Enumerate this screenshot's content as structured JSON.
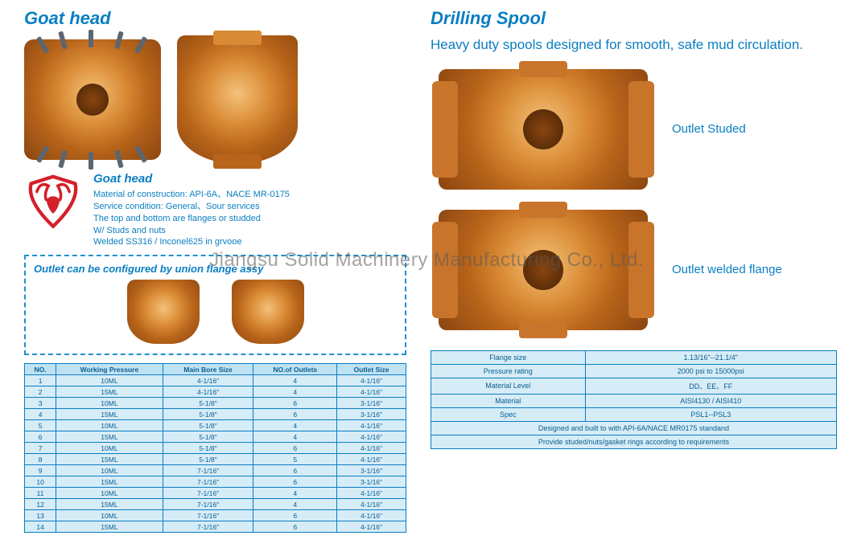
{
  "watermark": "Jiangsu Solid Machinery Manufacturing Co., Ltd.",
  "left": {
    "heading": "Goat head",
    "sub": {
      "title": "Goat head",
      "lines": [
        "Material of construction:  API-6A、NACE MR-0175",
        "Service condition:  General、Sour services",
        "The top and bottom are flanges or studded",
        "W/ Studs and nuts",
        "Welded SS316 / Inconel625 in grvooe"
      ]
    },
    "dashed_title": "Outlet can be configured by union flange assy",
    "table": {
      "columns": [
        "NO.",
        "Working Pressure",
        "Main Bore Size",
        "NO.of Outlets",
        "Outlet Size"
      ],
      "rows": [
        [
          "1",
          "10ML",
          "4-1/16\"",
          "4",
          "4-1/16\""
        ],
        [
          "2",
          "15ML",
          "4-1/16\"",
          "4",
          "4-1/16\""
        ],
        [
          "3",
          "10ML",
          "5-1/8\"",
          "6",
          "3-1/16\""
        ],
        [
          "4",
          "15ML",
          "5-1/8\"",
          "6",
          "3-1/16\""
        ],
        [
          "5",
          "10ML",
          "5-1/8\"",
          "4",
          "4-1/16\""
        ],
        [
          "6",
          "15ML",
          "5-1/8\"",
          "4",
          "4-1/16\""
        ],
        [
          "7",
          "10ML",
          "5-1/8\"",
          "6",
          "4-1/16\""
        ],
        [
          "8",
          "15ML",
          "5-1/8\"",
          "5",
          "4-1/16\""
        ],
        [
          "9",
          "10ML",
          "7-1/16\"",
          "6",
          "3-1/16\""
        ],
        [
          "10",
          "15ML",
          "7-1/16\"",
          "6",
          "3-1/16\""
        ],
        [
          "11",
          "10ML",
          "7-1/16\"",
          "4",
          "4-1/16\""
        ],
        [
          "12",
          "15ML",
          "7-1/16\"",
          "4",
          "4-1/16\""
        ],
        [
          "13",
          "10ML",
          "7-1/16\"",
          "6",
          "4-1/16\""
        ],
        [
          "14",
          "15ML",
          "7-1/16\"",
          "6",
          "4-1/16\""
        ]
      ]
    }
  },
  "right": {
    "heading": "Drilling Spool",
    "desc": "Heavy duty spools designed for smooth, safe mud circulation.",
    "label1": "Outlet Studed",
    "label2": "Outlet welded flange",
    "table": {
      "rows": [
        [
          "Flange size",
          "1.13/16\"--21.1/4\""
        ],
        [
          "Pressure rating",
          "2000 psi to 15000psi"
        ],
        [
          "Material Level",
          "DD、EE、FF"
        ],
        [
          "Material",
          "AISI4130 / AISI410"
        ],
        [
          "Spec",
          "PSL1--PSL3"
        ]
      ],
      "foot": [
        "Designed and built to with API-6A/NACE  MR0175 standand",
        "Provide studed/nuts/gasket rings according to requirements"
      ]
    }
  },
  "colors": {
    "brand_blue": "#0a7ec2",
    "table_bg": "#d6ecf7",
    "part_orange": "#d98a34",
    "logo_red": "#d4202a"
  }
}
